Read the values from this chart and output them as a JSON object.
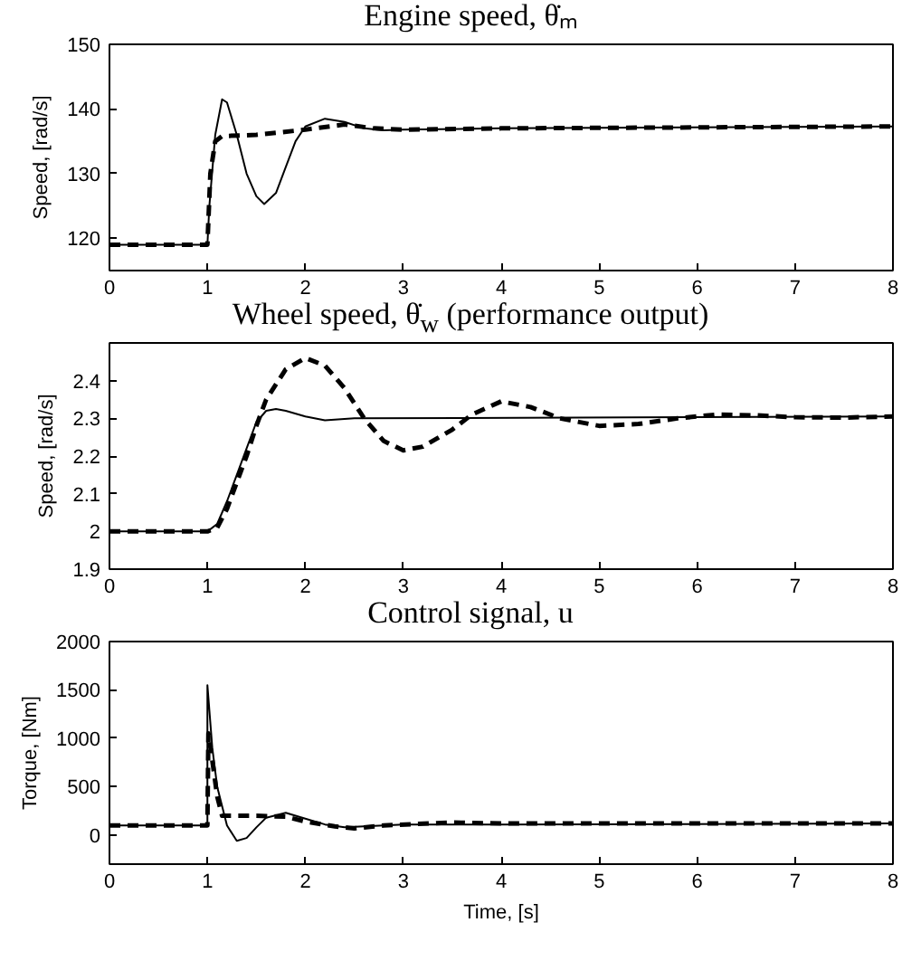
{
  "chart_data": [
    {
      "type": "line",
      "title": "Engine speed, θ̇ₘ",
      "ylabel": "Speed, [rad/s]",
      "xlim": [
        0,
        8
      ],
      "xticks": [
        0,
        1,
        2,
        3,
        4,
        5,
        6,
        7,
        8
      ],
      "ylim": [
        115,
        150
      ],
      "yticks": [
        120,
        130,
        140,
        150
      ],
      "grid": false,
      "series": [
        {
          "color": "#000000",
          "line_style": "solid",
          "x": [
            0,
            1.0,
            1.02,
            1.08,
            1.15,
            1.2,
            1.3,
            1.4,
            1.5,
            1.58,
            1.7,
            1.8,
            1.9,
            2.0,
            2.2,
            2.4,
            2.6,
            2.8,
            3,
            4,
            8
          ],
          "values": [
            119,
            119,
            125,
            136,
            141.5,
            141,
            136,
            130,
            126.5,
            125.3,
            127,
            131,
            135,
            137.3,
            138.5,
            138,
            137,
            136.7,
            136.8,
            137,
            137.3
          ]
        },
        {
          "color": "#000000",
          "line_style": "dashed",
          "x": [
            0,
            1.0,
            1.03,
            1.08,
            1.15,
            1.5,
            2,
            2.4,
            2.7,
            3,
            4,
            8
          ],
          "values": [
            119,
            119,
            130,
            135,
            135.8,
            136,
            136.8,
            137.6,
            137,
            136.8,
            137,
            137.3
          ]
        }
      ]
    },
    {
      "type": "line",
      "title": "Wheel speed, θ̇$_{w}$ (performance output)",
      "ylabel": "Speed, [rad/s]",
      "xlim": [
        0,
        8
      ],
      "xticks": [
        0,
        1,
        2,
        3,
        4,
        5,
        6,
        7,
        8
      ],
      "ylim": [
        1.9,
        2.5
      ],
      "yticks": [
        1.9,
        2,
        2.1,
        2.2,
        2.3,
        2.4
      ],
      "grid": false,
      "series": [
        {
          "color": "#000000",
          "line_style": "solid",
          "x": [
            0,
            1,
            1.1,
            1.2,
            1.3,
            1.4,
            1.5,
            1.6,
            1.7,
            1.8,
            2.0,
            2.2,
            2.5,
            8
          ],
          "values": [
            2,
            2,
            2.02,
            2.08,
            2.15,
            2.22,
            2.29,
            2.32,
            2.325,
            2.32,
            2.305,
            2.295,
            2.3,
            2.305
          ]
        },
        {
          "color": "#000000",
          "line_style": "dashed",
          "x": [
            0,
            1,
            1.1,
            1.2,
            1.3,
            1.4,
            1.5,
            1.6,
            1.8,
            2.0,
            2.2,
            2.4,
            2.6,
            2.8,
            3.0,
            3.2,
            3.5,
            3.7,
            4.0,
            4.3,
            4.6,
            5.0,
            5.4,
            5.8,
            6.2,
            6.6,
            7,
            7.5,
            8
          ],
          "values": [
            2,
            2,
            2.01,
            2.06,
            2.13,
            2.2,
            2.28,
            2.35,
            2.43,
            2.46,
            2.44,
            2.38,
            2.3,
            2.24,
            2.215,
            2.225,
            2.27,
            2.31,
            2.345,
            2.33,
            2.3,
            2.28,
            2.285,
            2.3,
            2.31,
            2.308,
            2.303,
            2.302,
            2.305
          ]
        }
      ]
    },
    {
      "type": "line",
      "title": "Control signal, u",
      "xlabel": "Time, [s]",
      "ylabel": "Torque, [Nm]",
      "xlim": [
        0,
        8
      ],
      "xticks": [
        0,
        1,
        2,
        3,
        4,
        5,
        6,
        7,
        8
      ],
      "ylim": [
        -300,
        2000
      ],
      "yticks": [
        0,
        500,
        1000,
        1500,
        2000
      ],
      "grid": false,
      "series": [
        {
          "color": "#000000",
          "line_style": "solid",
          "x": [
            0,
            1.0,
            1.0,
            1.05,
            1.1,
            1.2,
            1.3,
            1.4,
            1.5,
            1.6,
            1.8,
            2.0,
            2.2,
            2.4,
            2.6,
            3,
            4,
            8
          ],
          "values": [
            100,
            100,
            1550,
            900,
            500,
            100,
            -60,
            -30,
            80,
            180,
            230,
            170,
            110,
            80,
            90,
            110,
            110,
            120
          ]
        },
        {
          "color": "#000000",
          "line_style": "dashed",
          "x": [
            0,
            1.0,
            1.01,
            1.06,
            1.1,
            1.15,
            1.5,
            1.8,
            2.0,
            2.3,
            2.5,
            2.8,
            3.5,
            4,
            8
          ],
          "values": [
            100,
            100,
            1050,
            700,
            400,
            200,
            200,
            190,
            140,
            90,
            70,
            100,
            130,
            120,
            120
          ]
        }
      ]
    }
  ]
}
